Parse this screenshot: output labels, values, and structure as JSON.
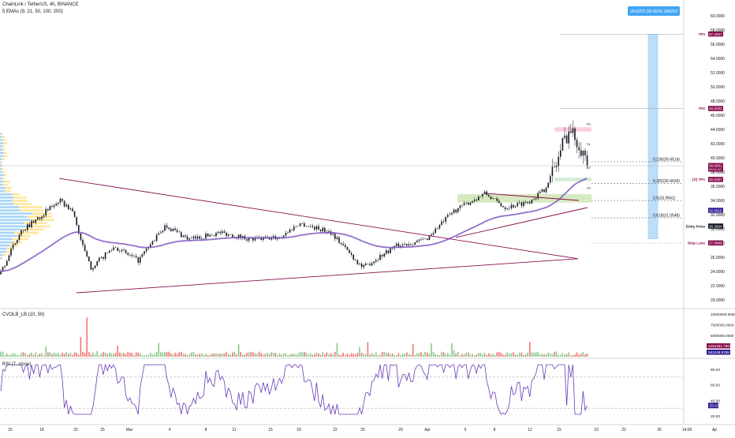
{
  "header": {
    "symbol_line": "ChainLink / TetherUS, 4h, BINANCE",
    "indicator_line": "5 EMAs (9, 21, 50, 100, 200)"
  },
  "chart_data": {
    "type": "candlestick",
    "price_axis": {
      "min": 20,
      "max": 60,
      "ticks": [
        "60.0000",
        "58.0000",
        "56.0000",
        "54.0000",
        "52.0000",
        "50.0000",
        "48.0000",
        "46.0000",
        "44.0000",
        "42.0000",
        "40.0000",
        "38.0000",
        "36.0000",
        "34.0000",
        "32.0000",
        "30.0000",
        "28.0000",
        "26.0000",
        "24.0000",
        "22.0000",
        "20.0000"
      ]
    },
    "x_ticks": [
      "15",
      "18",
      "22",
      "25",
      "Mar",
      "4",
      "8",
      "11",
      "15",
      "18",
      "22",
      "25",
      "29",
      "Apr",
      "5",
      "8",
      "12",
      "15",
      "19",
      "22",
      "26",
      "14:00",
      "Ap"
    ],
    "price_labels": [
      {
        "value": 57.4057,
        "text": "57.4057",
        "tag": "TP3",
        "color": "#880e4f"
      },
      {
        "value": 46.9202,
        "text": "46.9202",
        "tag": "TP2",
        "color": "#880e4f"
      },
      {
        "value": 38.8861,
        "text": "38.8861",
        "sub": "03:01:42",
        "tag": "",
        "color": "#880e4f"
      },
      {
        "value": 36.9307,
        "text": "36.9307",
        "tag": "[X] TP1",
        "color": "#880e4f"
      },
      {
        "value": 32.5815,
        "text": "32.5815",
        "tag": "",
        "color": "#311b92"
      },
      {
        "value": 30.3604,
        "text": "30.3604",
        "tag": "Entry Price",
        "color": "#131722"
      },
      {
        "value": 27.9888,
        "text": "27.9888",
        "tag": "Stop Loss",
        "color": "#880e4f"
      }
    ],
    "measure_label": "28.6253 (99.65%) 286253",
    "fib_levels": [
      {
        "text": "0.236(39.4514)",
        "value": 39.4514
      },
      {
        "text": "0.382(36.4034)",
        "value": 36.4034
      },
      {
        "text": "0.5(33.9941)",
        "value": 33.9941
      },
      {
        "text": "0.618(31.5548)",
        "value": 31.5548
      }
    ],
    "pivot_labels": [
      "R1",
      "S1",
      "S2",
      "S3"
    ],
    "volume_panel": {
      "title": "CVOLB_LB (10, 50)",
      "ticks": [
        "10000000.0000",
        "7500000.0000",
        "5000000.0000"
      ],
      "last_labels": [
        "1254361.7964",
        "561249.9788"
      ],
      "max": 10000000
    },
    "rsi_panel": {
      "title": "RSI (7, close)",
      "ticks": [
        "80.00",
        "60.00",
        "40.00",
        "20.00"
      ],
      "last_label": "33.43",
      "last_value": 33.43,
      "levels": [
        70,
        30
      ],
      "min": 15,
      "max": 95
    },
    "key_points": [
      {
        "x": "Feb 15",
        "close": 23.6
      },
      {
        "x": "Feb 18",
        "close": 30.5
      },
      {
        "x": "Feb 20",
        "close": 34.0
      },
      {
        "x": "Feb 22",
        "close": 26.5
      },
      {
        "x": "Feb 24",
        "close": 24.5
      },
      {
        "x": "Mar 4",
        "close": 30.5
      },
      {
        "x": "Mar 11",
        "close": 29.5
      },
      {
        "x": "Mar 18",
        "close": 30.5
      },
      {
        "x": "Mar 25",
        "close": 25.0
      },
      {
        "x": "Apr 1",
        "close": 31.5
      },
      {
        "x": "Apr 8",
        "close": 33.0
      },
      {
        "x": "Apr 14",
        "close": 43.5
      },
      {
        "x": "Apr 17",
        "close": 38.9
      }
    ],
    "colors": {
      "up": "#26a69a",
      "down": "#ef5350",
      "ema": "#7e57c2",
      "trend": "#880e4f",
      "rsi": "#673ab7",
      "measure": "#2962ff"
    }
  }
}
